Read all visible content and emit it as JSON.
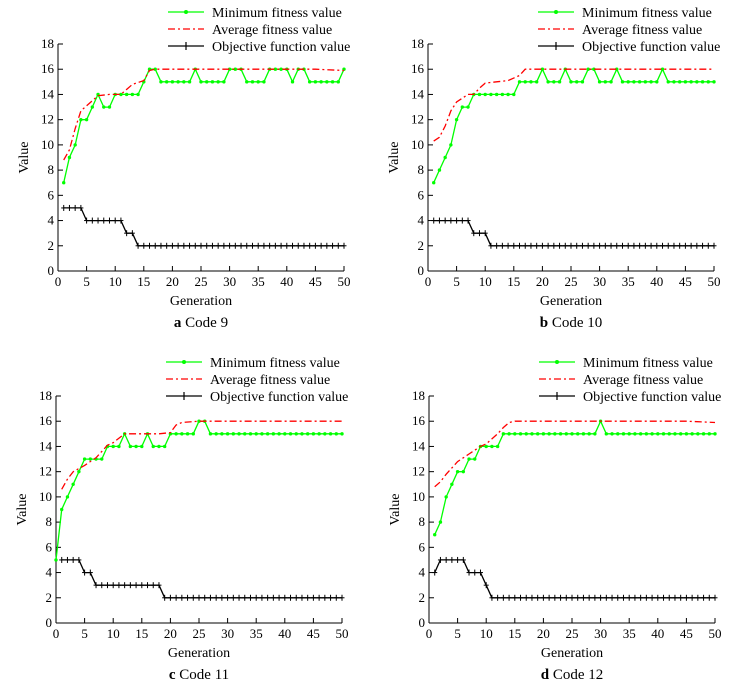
{
  "figure": {
    "colors": {
      "minimum": "#00ff00",
      "average": "#ff0000",
      "objective": "#000000"
    }
  },
  "chart_data": [
    {
      "type": "line",
      "caption_letter": "a",
      "caption_text": "Code 9",
      "xlabel": "Generation",
      "ylabel": "Value",
      "xlim": [
        0,
        50
      ],
      "ylim": [
        0,
        18
      ],
      "xticks": [
        0,
        5,
        10,
        15,
        20,
        25,
        30,
        35,
        40,
        45,
        50
      ],
      "yticks": [
        0,
        2,
        4,
        6,
        8,
        10,
        12,
        14,
        16,
        18
      ],
      "legend_position": "top",
      "series": [
        {
          "name": "Minimum fitness value",
          "style": "solid-dot",
          "x": [
            1,
            2,
            3,
            4,
            5,
            6,
            7,
            8,
            9,
            10,
            11,
            12,
            13,
            14,
            15,
            16,
            17,
            18,
            19,
            20,
            21,
            22,
            23,
            24,
            25,
            26,
            27,
            28,
            29,
            30,
            31,
            32,
            33,
            34,
            35,
            36,
            37,
            38,
            39,
            40,
            41,
            42,
            43,
            44,
            45,
            46,
            47,
            48,
            49,
            50
          ],
          "values": [
            7,
            9,
            10,
            12,
            12,
            13,
            14,
            13,
            13,
            14,
            14,
            14,
            14,
            14,
            15,
            16,
            16,
            15,
            15,
            15,
            15,
            15,
            15,
            16,
            15,
            15,
            15,
            15,
            15,
            16,
            16,
            16,
            15,
            15,
            15,
            15,
            16,
            16,
            16,
            16,
            15,
            16,
            16,
            15,
            15,
            15,
            15,
            15,
            15,
            16
          ]
        },
        {
          "name": "Average fitness value",
          "style": "dashdot",
          "x": [
            1,
            2,
            3,
            4,
            5,
            7,
            9,
            11,
            13,
            15,
            16,
            17,
            20,
            25,
            30,
            35,
            40,
            45,
            50
          ],
          "values": [
            8.8,
            9.6,
            11.3,
            12.7,
            13.1,
            13.9,
            14.0,
            14.0,
            14.8,
            15.1,
            15.9,
            16.0,
            16.0,
            16.0,
            16.0,
            16.0,
            16.0,
            16.0,
            15.9
          ]
        },
        {
          "name": "Objective function value",
          "style": "solid-plus",
          "x": [
            1,
            2,
            3,
            4,
            5,
            6,
            7,
            8,
            9,
            10,
            11,
            12,
            13,
            14,
            15,
            16,
            17,
            18,
            19,
            20,
            21,
            22,
            23,
            24,
            25,
            26,
            27,
            28,
            29,
            30,
            31,
            32,
            33,
            34,
            35,
            36,
            37,
            38,
            39,
            40,
            41,
            42,
            43,
            44,
            45,
            46,
            47,
            48,
            49,
            50
          ],
          "values": [
            5,
            5,
            5,
            5,
            4,
            4,
            4,
            4,
            4,
            4,
            4,
            3,
            3,
            2,
            2,
            2,
            2,
            2,
            2,
            2,
            2,
            2,
            2,
            2,
            2,
            2,
            2,
            2,
            2,
            2,
            2,
            2,
            2,
            2,
            2,
            2,
            2,
            2,
            2,
            2,
            2,
            2,
            2,
            2,
            2,
            2,
            2,
            2,
            2,
            2
          ]
        }
      ]
    },
    {
      "type": "line",
      "caption_letter": "b",
      "caption_text": "Code 10",
      "xlabel": "Generation",
      "ylabel": "Value",
      "xlim": [
        0,
        50
      ],
      "ylim": [
        0,
        18
      ],
      "xticks": [
        0,
        5,
        10,
        15,
        20,
        25,
        30,
        35,
        40,
        45,
        50
      ],
      "yticks": [
        0,
        2,
        4,
        6,
        8,
        10,
        12,
        14,
        16,
        18
      ],
      "legend_position": "top",
      "series": [
        {
          "name": "Minimum fitness value",
          "style": "solid-dot",
          "x": [
            1,
            2,
            3,
            4,
            5,
            6,
            7,
            8,
            9,
            10,
            11,
            12,
            13,
            14,
            15,
            16,
            17,
            18,
            19,
            20,
            21,
            22,
            23,
            24,
            25,
            26,
            27,
            28,
            29,
            30,
            31,
            32,
            33,
            34,
            35,
            36,
            37,
            38,
            39,
            40,
            41,
            42,
            43,
            44,
            45,
            46,
            47,
            48,
            49,
            50
          ],
          "values": [
            7,
            8,
            9,
            10,
            12,
            13,
            13,
            14,
            14,
            14,
            14,
            14,
            14,
            14,
            14,
            15,
            15,
            15,
            15,
            16,
            15,
            15,
            15,
            16,
            15,
            15,
            15,
            16,
            16,
            15,
            15,
            15,
            16,
            15,
            15,
            15,
            15,
            15,
            15,
            15,
            16,
            15,
            15,
            15,
            15,
            15,
            15,
            15,
            15,
            15
          ]
        },
        {
          "name": "Average fitness value",
          "style": "dashdot",
          "x": [
            1,
            2,
            3,
            4,
            5,
            6,
            7,
            8,
            9,
            10,
            12,
            14,
            16,
            17,
            20,
            25,
            30,
            35,
            40,
            45,
            50
          ],
          "values": [
            10.3,
            10.6,
            11.5,
            12.7,
            13.4,
            13.7,
            14.0,
            14.0,
            14.5,
            14.9,
            15.0,
            15.1,
            15.5,
            16.0,
            16.0,
            16.0,
            16.0,
            16.0,
            16.0,
            16.0,
            16.0
          ]
        },
        {
          "name": "Objective function value",
          "style": "solid-plus",
          "x": [
            1,
            2,
            3,
            4,
            5,
            6,
            7,
            8,
            9,
            10,
            11,
            12,
            13,
            14,
            15,
            16,
            17,
            18,
            19,
            20,
            21,
            22,
            23,
            24,
            25,
            26,
            27,
            28,
            29,
            30,
            31,
            32,
            33,
            34,
            35,
            36,
            37,
            38,
            39,
            40,
            41,
            42,
            43,
            44,
            45,
            46,
            47,
            48,
            49,
            50
          ],
          "values": [
            4,
            4,
            4,
            4,
            4,
            4,
            4,
            3,
            3,
            3,
            2,
            2,
            2,
            2,
            2,
            2,
            2,
            2,
            2,
            2,
            2,
            2,
            2,
            2,
            2,
            2,
            2,
            2,
            2,
            2,
            2,
            2,
            2,
            2,
            2,
            2,
            2,
            2,
            2,
            2,
            2,
            2,
            2,
            2,
            2,
            2,
            2,
            2,
            2,
            2
          ]
        }
      ]
    },
    {
      "type": "line",
      "caption_letter": "c",
      "caption_text": "Code 11",
      "xlabel": "Generation",
      "ylabel": "Value",
      "xlim": [
        0,
        50
      ],
      "ylim": [
        0,
        18
      ],
      "xticks": [
        0,
        5,
        10,
        15,
        20,
        25,
        30,
        35,
        40,
        45,
        50
      ],
      "yticks": [
        0,
        2,
        4,
        6,
        8,
        10,
        12,
        14,
        16,
        18
      ],
      "legend_position": "top",
      "series": [
        {
          "name": "Minimum fitness value",
          "style": "solid-dot",
          "x": [
            0,
            1,
            2,
            3,
            4,
            5,
            6,
            7,
            8,
            9,
            10,
            11,
            12,
            13,
            14,
            15,
            16,
            17,
            18,
            19,
            20,
            21,
            22,
            23,
            24,
            25,
            26,
            27,
            28,
            29,
            30,
            31,
            32,
            33,
            34,
            35,
            36,
            37,
            38,
            39,
            40,
            41,
            42,
            43,
            44,
            45,
            46,
            47,
            48,
            49,
            50
          ],
          "values": [
            5,
            9,
            10,
            11,
            12,
            13,
            13,
            13,
            13,
            14,
            14,
            14,
            15,
            14,
            14,
            14,
            15,
            14,
            14,
            14,
            15,
            15,
            15,
            15,
            15,
            16,
            16,
            15,
            15,
            15,
            15,
            15,
            15,
            15,
            15,
            15,
            15,
            15,
            15,
            15,
            15,
            15,
            15,
            15,
            15,
            15,
            15,
            15,
            15,
            15,
            15
          ]
        },
        {
          "name": "Average fitness value",
          "style": "dashdot",
          "x": [
            1,
            2,
            3,
            5,
            7,
            9,
            10,
            12,
            15,
            18,
            20,
            21,
            22,
            25,
            30,
            35,
            40,
            45,
            50
          ],
          "values": [
            10.6,
            11.4,
            12.0,
            12.5,
            13.1,
            14.1,
            14.3,
            15.0,
            15.0,
            15.0,
            15.1,
            15.7,
            15.9,
            16.0,
            16.0,
            16.0,
            16.0,
            16.0,
            16.0
          ]
        },
        {
          "name": "Objective function value",
          "style": "solid-plus",
          "x": [
            1,
            2,
            3,
            4,
            5,
            6,
            7,
            8,
            9,
            10,
            11,
            12,
            13,
            14,
            15,
            16,
            17,
            18,
            19,
            20,
            21,
            22,
            23,
            24,
            25,
            26,
            27,
            28,
            29,
            30,
            31,
            32,
            33,
            34,
            35,
            36,
            37,
            38,
            39,
            40,
            41,
            42,
            43,
            44,
            45,
            46,
            47,
            48,
            49,
            50
          ],
          "values": [
            5,
            5,
            5,
            5,
            4,
            4,
            3,
            3,
            3,
            3,
            3,
            3,
            3,
            3,
            3,
            3,
            3,
            3,
            2,
            2,
            2,
            2,
            2,
            2,
            2,
            2,
            2,
            2,
            2,
            2,
            2,
            2,
            2,
            2,
            2,
            2,
            2,
            2,
            2,
            2,
            2,
            2,
            2,
            2,
            2,
            2,
            2,
            2,
            2,
            2
          ]
        }
      ]
    },
    {
      "type": "line",
      "caption_letter": "d",
      "caption_text": "Code 12",
      "xlabel": "Generation",
      "ylabel": "Value",
      "xlim": [
        0,
        50
      ],
      "ylim": [
        0,
        18
      ],
      "xticks": [
        0,
        5,
        10,
        15,
        20,
        25,
        30,
        35,
        40,
        45,
        50
      ],
      "yticks": [
        0,
        2,
        4,
        6,
        8,
        10,
        12,
        14,
        16,
        18
      ],
      "legend_position": "top",
      "series": [
        {
          "name": "Minimum fitness value",
          "style": "solid-dot",
          "x": [
            1,
            2,
            3,
            4,
            5,
            6,
            7,
            8,
            9,
            10,
            11,
            12,
            13,
            14,
            15,
            16,
            17,
            18,
            19,
            20,
            21,
            22,
            23,
            24,
            25,
            26,
            27,
            28,
            29,
            30,
            31,
            32,
            33,
            34,
            35,
            36,
            37,
            38,
            39,
            40,
            41,
            42,
            43,
            44,
            45,
            46,
            47,
            48,
            49,
            50
          ],
          "values": [
            7,
            8,
            10,
            11,
            12,
            12,
            13,
            13,
            14,
            14,
            14,
            14,
            15,
            15,
            15,
            15,
            15,
            15,
            15,
            15,
            15,
            15,
            15,
            15,
            15,
            15,
            15,
            15,
            15,
            16,
            15,
            15,
            15,
            15,
            15,
            15,
            15,
            15,
            15,
            15,
            15,
            15,
            15,
            15,
            15,
            15,
            15,
            15,
            15,
            15
          ]
        },
        {
          "name": "Average fitness value",
          "style": "dashdot",
          "x": [
            1,
            2,
            3,
            4,
            5,
            6,
            7,
            8,
            9,
            10,
            11,
            12,
            13,
            14,
            15,
            20,
            25,
            30,
            35,
            40,
            45,
            50
          ],
          "values": [
            10.8,
            11.2,
            11.8,
            12.3,
            12.8,
            13.1,
            13.4,
            13.7,
            14.0,
            14.2,
            14.6,
            15.0,
            15.5,
            15.9,
            16.0,
            16.0,
            16.0,
            16.0,
            16.0,
            16.0,
            16.0,
            15.9
          ]
        },
        {
          "name": "Objective function value",
          "style": "solid-plus",
          "x": [
            1,
            2,
            3,
            4,
            5,
            6,
            7,
            8,
            9,
            10,
            11,
            12,
            13,
            14,
            15,
            16,
            17,
            18,
            19,
            20,
            21,
            22,
            23,
            24,
            25,
            26,
            27,
            28,
            29,
            30,
            31,
            32,
            33,
            34,
            35,
            36,
            37,
            38,
            39,
            40,
            41,
            42,
            43,
            44,
            45,
            46,
            47,
            48,
            49,
            50
          ],
          "values": [
            4,
            5,
            5,
            5,
            5,
            5,
            4,
            4,
            4,
            3,
            2,
            2,
            2,
            2,
            2,
            2,
            2,
            2,
            2,
            2,
            2,
            2,
            2,
            2,
            2,
            2,
            2,
            2,
            2,
            2,
            2,
            2,
            2,
            2,
            2,
            2,
            2,
            2,
            2,
            2,
            2,
            2,
            2,
            2,
            2,
            2,
            2,
            2,
            2,
            2
          ]
        }
      ]
    }
  ]
}
